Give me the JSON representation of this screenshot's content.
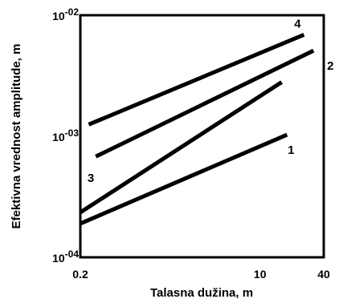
{
  "chart_data": {
    "type": "line",
    "title": "",
    "xlabel": "Talasna dužina, m",
    "ylabel": "Efektivna vrednost amplitude, m",
    "xscale": "log",
    "yscale": "log",
    "xlim": [
      0.2,
      40
    ],
    "ylim": [
      0.0001,
      0.01
    ],
    "grid": false,
    "legend": "none",
    "x_ticks": [
      "0.2",
      "10",
      "40"
    ],
    "y_ticks": [
      {
        "base": "10",
        "exp": "-04"
      },
      {
        "base": "10",
        "exp": "-03"
      },
      {
        "base": "10",
        "exp": "-02"
      }
    ],
    "series": [
      {
        "label": "1",
        "points": [
          [
            0.2,
            0.00019
          ],
          [
            18,
            0.00103
          ]
        ]
      },
      {
        "label": "2",
        "points": [
          [
            0.28,
            0.00068
          ],
          [
            32,
            0.0051
          ]
        ]
      },
      {
        "label": "3",
        "points": [
          [
            0.2,
            0.000235
          ],
          [
            16,
            0.0028
          ]
        ]
      },
      {
        "label": "4",
        "points": [
          [
            0.24,
            0.00125
          ],
          [
            26,
            0.0069
          ]
        ]
      }
    ]
  }
}
